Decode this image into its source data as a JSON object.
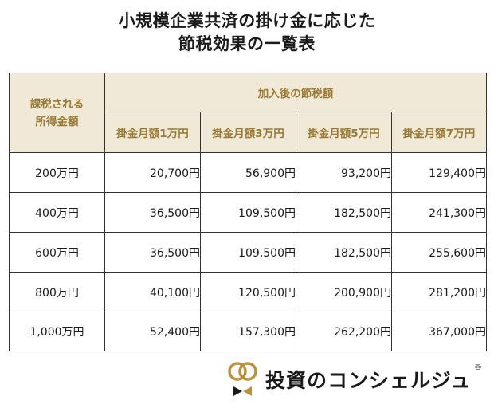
{
  "title": {
    "line1": "小規模企業共済の掛け金に応じた",
    "line2": "節税効果の一覧表"
  },
  "table": {
    "income_header": [
      "課税される",
      "所得金額"
    ],
    "group_header": "加入後の節税額",
    "columns": [
      "掛金月額1万円",
      "掛金月額3万円",
      "掛金月額5万円",
      "掛金月額7万円"
    ],
    "rows": [
      {
        "income": "200万円",
        "values": [
          "20,700円",
          "56,900円",
          "93,200円",
          "129,400円"
        ]
      },
      {
        "income": "400万円",
        "values": [
          "36,500円",
          "109,500円",
          "182,500円",
          "241,300円"
        ]
      },
      {
        "income": "600万円",
        "values": [
          "36,500円",
          "109,500円",
          "182,500円",
          "255,600円"
        ]
      },
      {
        "income": "800万円",
        "values": [
          "40,100円",
          "120,500円",
          "200,900円",
          "281,200円"
        ]
      },
      {
        "income": "1,000万円",
        "values": [
          "52,400円",
          "157,300円",
          "262,200円",
          "367,000円"
        ]
      }
    ]
  },
  "brand": {
    "name": "投資のコンシェルジュ",
    "registered_mark": "®",
    "gold_color": "#b8923f",
    "dark_color": "#1a1a1a"
  }
}
